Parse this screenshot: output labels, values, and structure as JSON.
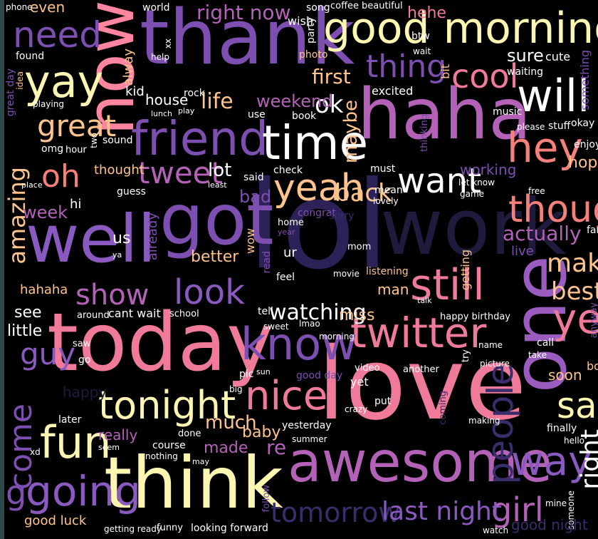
{
  "colors": {
    "background": "#000000",
    "frame": "#2c4a4a",
    "palette": [
      "#fdf6b0",
      "#ffc48c",
      "#f7807a",
      "#e06b96",
      "#b462b7",
      "#7d4fb0",
      "#3a2d6b",
      "#1e1b3d"
    ]
  },
  "words": [
    {
      "t": "thank",
      "c": "#7d4fb0"
    },
    {
      "t": "now",
      "c": "#ff85a0"
    },
    {
      "t": "good morning",
      "c": "#fdf6b0"
    },
    {
      "t": "haha",
      "c": "#b462b7"
    },
    {
      "t": "lol",
      "c": "#2d2258"
    },
    {
      "t": "work",
      "c": "#1e1b3d"
    },
    {
      "t": "well",
      "c": "#8a5ac0"
    },
    {
      "t": "got",
      "c": "#7d4fb0"
    },
    {
      "t": "today",
      "c": "#f07a9a"
    },
    {
      "t": "love",
      "c": "#f07a9a"
    },
    {
      "t": "one",
      "c": "#9b5cc0"
    },
    {
      "t": "think",
      "c": "#fdf6b0"
    },
    {
      "t": "awesome",
      "c": "#b462b7"
    },
    {
      "t": "friend",
      "c": "#7d4fb0"
    },
    {
      "t": "time",
      "c": "#ffffff"
    },
    {
      "t": "will",
      "c": "#ffffff"
    },
    {
      "t": "hey",
      "c": "#f7807a"
    },
    {
      "t": "twitter",
      "c": "#f07a9a"
    },
    {
      "t": "still",
      "c": "#f07a9a"
    },
    {
      "t": "know",
      "c": "#7d4fb0"
    },
    {
      "t": "nice",
      "c": "#f07a9a"
    },
    {
      "t": "going",
      "c": "#8a5ac0"
    },
    {
      "t": "fun",
      "c": "#fdf6b0"
    },
    {
      "t": "tonight",
      "c": "#fdf6b0"
    },
    {
      "t": "need",
      "c": "#7d4fb0"
    },
    {
      "t": "yay",
      "c": "#fdf6b0"
    },
    {
      "t": "great",
      "c": "#ffc48c"
    },
    {
      "t": "oh",
      "c": "#f7807a"
    },
    {
      "t": "tweet",
      "c": "#b462b7"
    },
    {
      "t": "yeah",
      "c": "#ffc48c"
    },
    {
      "t": "want",
      "c": "#ffffff"
    },
    {
      "t": "though",
      "c": "#f7807a"
    },
    {
      "t": "cool",
      "c": "#f07a9a"
    },
    {
      "t": "thing",
      "c": "#7d4fb0"
    },
    {
      "t": "look",
      "c": "#8a5ac0"
    },
    {
      "t": "show",
      "c": "#b462b7"
    },
    {
      "t": "guy",
      "c": "#8a5ac0"
    },
    {
      "t": "ye",
      "c": "#f07a9a"
    },
    {
      "t": "say",
      "c": "#fdf6b0"
    },
    {
      "t": "way",
      "c": "#8a5ac0"
    },
    {
      "t": "girl",
      "c": "#b462b7"
    },
    {
      "t": "make",
      "c": "#ffc48c"
    },
    {
      "t": "best",
      "c": "#ffc48c"
    },
    {
      "t": "watching",
      "c": "#ffffff"
    },
    {
      "t": "tomorrow",
      "c": "#3a2d6b"
    },
    {
      "t": "last night",
      "c": "#8a5ac0"
    },
    {
      "t": "come",
      "c": "#7d4fb0"
    },
    {
      "t": "g",
      "c": "#7d4fb0"
    },
    {
      "t": "people",
      "c": "#3a2d6b"
    },
    {
      "t": "amazing",
      "c": "#ffc48c"
    },
    {
      "t": "right",
      "c": "#ffffff"
    },
    {
      "t": "first",
      "c": "#ffc48c"
    },
    {
      "t": "ok",
      "c": "#ffffff"
    },
    {
      "t": "maybe",
      "c": "#ffc48c"
    },
    {
      "t": "weekend",
      "c": "#b462b7"
    },
    {
      "t": "life",
      "c": "#ffc48c"
    },
    {
      "t": "house",
      "c": "#ffffff"
    },
    {
      "t": "kid",
      "c": "#ffffff"
    },
    {
      "t": "back",
      "c": "#ffc48c"
    },
    {
      "t": "lot",
      "c": "#ffffff"
    },
    {
      "t": "bad",
      "c": "#7d4fb0"
    },
    {
      "t": "right now",
      "c": "#b462b7"
    },
    {
      "t": "world",
      "c": "#ffffff"
    },
    {
      "t": "song",
      "c": "#ffffff"
    },
    {
      "t": "coffee",
      "c": "#ffffff"
    },
    {
      "t": "beautiful",
      "c": "#ffffff"
    },
    {
      "t": "hehe",
      "c": "#f07a9a"
    },
    {
      "t": "wish",
      "c": "#ffffff"
    },
    {
      "t": "party",
      "c": "#ffffff"
    },
    {
      "t": "photo",
      "c": "#ffc48c"
    },
    {
      "t": "btw",
      "c": "#ffffff"
    },
    {
      "t": "wait",
      "c": "#ffffff"
    },
    {
      "t": "sure",
      "c": "#ffffff"
    },
    {
      "t": "cute",
      "c": "#ffffff"
    },
    {
      "t": "waiting",
      "c": "#ffffff"
    },
    {
      "t": "bit",
      "c": "#ffc48c"
    },
    {
      "t": "something",
      "c": "#7d4fb0"
    },
    {
      "t": "excited",
      "c": "#ffffff"
    },
    {
      "t": "music",
      "c": "#ffffff"
    },
    {
      "t": "okay",
      "c": "#ffffff"
    },
    {
      "t": "please",
      "c": "#ffffff"
    },
    {
      "t": "stuff",
      "c": "#ffffff"
    },
    {
      "t": "enjoy",
      "c": "#ffffff"
    },
    {
      "t": "hope",
      "c": "#ffc48c"
    },
    {
      "t": "working",
      "c": "#7d4fb0"
    },
    {
      "t": "let know",
      "c": "#ffffff"
    },
    {
      "t": "game",
      "c": "#ffffff"
    },
    {
      "t": "free",
      "c": "#ffffff"
    },
    {
      "t": "fan",
      "c": "#ffffff"
    },
    {
      "t": "actually",
      "c": "#b462b7"
    },
    {
      "t": "live",
      "c": "#7d4fb0"
    },
    {
      "t": "phone",
      "c": "#ffffff"
    },
    {
      "t": "even",
      "c": "#ffc48c"
    },
    {
      "t": "found",
      "c": "#ffffff"
    },
    {
      "t": "alway",
      "c": "#ffc48c"
    },
    {
      "t": "help",
      "c": "#ffffff"
    },
    {
      "t": "xx",
      "c": "#ffffff"
    },
    {
      "t": "rock",
      "c": "#ffffff"
    },
    {
      "t": "lunch",
      "c": "#ffffff"
    },
    {
      "t": "play",
      "c": "#ffffff"
    },
    {
      "t": "use",
      "c": "#ffffff"
    },
    {
      "t": "book",
      "c": "#ffffff"
    },
    {
      "t": "great day",
      "c": "#7d4fb0"
    },
    {
      "t": "idea",
      "c": "#ffc48c"
    },
    {
      "t": "playing",
      "c": "#ffffff"
    },
    {
      "t": "omg",
      "c": "#ffffff"
    },
    {
      "t": "hour",
      "c": "#ffffff"
    },
    {
      "t": "two",
      "c": "#ffffff"
    },
    {
      "t": "sound",
      "c": "#ffffff"
    },
    {
      "t": "thought",
      "c": "#ffc48c"
    },
    {
      "t": "place",
      "c": "#ffffff"
    },
    {
      "t": "guess",
      "c": "#ffffff"
    },
    {
      "t": "said",
      "c": "#ffffff"
    },
    {
      "t": "least",
      "c": "#ffffff"
    },
    {
      "t": "check",
      "c": "#ffffff"
    },
    {
      "t": "must",
      "c": "#ffffff"
    },
    {
      "t": "thinking",
      "c": "#7d4fb0"
    },
    {
      "t": "mean",
      "c": "#ffffff"
    },
    {
      "t": "lovely",
      "c": "#ffffff"
    },
    {
      "t": "week",
      "c": "#b462b7"
    },
    {
      "t": "hi",
      "c": "#ffffff"
    },
    {
      "t": "us",
      "c": "#ffffff"
    },
    {
      "t": "already",
      "c": "#7d4fb0"
    },
    {
      "t": "better",
      "c": "#ffc48c"
    },
    {
      "t": "wow",
      "c": "#ffc48c"
    },
    {
      "t": "home",
      "c": "#ffffff"
    },
    {
      "t": "year",
      "c": "#7d4fb0"
    },
    {
      "t": "congrat",
      "c": "#7d4fb0"
    },
    {
      "t": "sorry",
      "c": "#3a2d6b"
    },
    {
      "t": "ya",
      "c": "#ffffff"
    },
    {
      "t": "read",
      "c": "#7d4fb0"
    },
    {
      "t": "ur",
      "c": "#ffffff"
    },
    {
      "t": "mom",
      "c": "#ffffff"
    },
    {
      "t": "feel",
      "c": "#ffffff"
    },
    {
      "t": "movie",
      "c": "#ffffff"
    },
    {
      "t": "listening",
      "c": "#ffc48c"
    },
    {
      "t": "man",
      "c": "#ffc48c"
    },
    {
      "t": "getting",
      "c": "#ffc48c"
    },
    {
      "t": "talk",
      "c": "#ffffff"
    },
    {
      "t": "hahaha",
      "c": "#ffc48c"
    },
    {
      "t": "see",
      "c": "#ffffff"
    },
    {
      "t": "little",
      "c": "#ffffff"
    },
    {
      "t": "around",
      "c": "#ffffff"
    },
    {
      "t": "cant wait",
      "c": "#ffffff"
    },
    {
      "t": "school",
      "c": "#ffffff"
    },
    {
      "t": "tell",
      "c": "#ffffff"
    },
    {
      "t": "sweet",
      "c": "#ffffff"
    },
    {
      "t": "lmao",
      "c": "#ffffff"
    },
    {
      "t": "miss",
      "c": "#ffc48c"
    },
    {
      "t": "happy birthday",
      "c": "#ffffff"
    },
    {
      "t": "anyway",
      "c": "#7d4fb0"
    },
    {
      "t": "call",
      "c": "#ffffff"
    },
    {
      "t": "take",
      "c": "#ffffff"
    },
    {
      "t": "boy",
      "c": "#ffc48c"
    },
    {
      "t": "name",
      "c": "#ffffff"
    },
    {
      "t": "try",
      "c": "#ffffff"
    },
    {
      "t": "saw",
      "c": "#ffffff"
    },
    {
      "t": "go",
      "c": "#ffffff"
    },
    {
      "t": "pic",
      "c": "#ffffff"
    },
    {
      "t": "sun",
      "c": "#ffffff"
    },
    {
      "t": "morning",
      "c": "#ffffff"
    },
    {
      "t": "video",
      "c": "#ffffff"
    },
    {
      "t": "another",
      "c": "#ffffff"
    },
    {
      "t": "picture",
      "c": "#ffffff"
    },
    {
      "t": "soon",
      "c": "#ffc48c"
    },
    {
      "t": "yet",
      "c": "#ffffff"
    },
    {
      "t": "good day",
      "c": "#7d4fb0"
    },
    {
      "t": "big",
      "c": "#ffffff"
    },
    {
      "t": "happy",
      "c": "#1e1b3d"
    },
    {
      "t": "later",
      "c": "#ffffff"
    },
    {
      "t": "xd",
      "c": "#ffffff"
    },
    {
      "t": "really",
      "c": "#b462b7"
    },
    {
      "t": "much",
      "c": "#ffc48c"
    },
    {
      "t": "baby",
      "c": "#ffc48c"
    },
    {
      "t": "re",
      "c": "#b462b7"
    },
    {
      "t": "yesterday",
      "c": "#ffffff"
    },
    {
      "t": "summer",
      "c": "#ffffff"
    },
    {
      "t": "crazy",
      "c": "#ffffff"
    },
    {
      "t": "put",
      "c": "#ffffff"
    },
    {
      "t": "coming",
      "c": "#3a2d6b"
    },
    {
      "t": "making",
      "c": "#ffffff"
    },
    {
      "t": "finally",
      "c": "#ffffff"
    },
    {
      "t": "hello",
      "c": "#ffffff"
    },
    {
      "t": "made",
      "c": "#b462b7"
    },
    {
      "t": "done",
      "c": "#ffffff"
    },
    {
      "t": "course",
      "c": "#ffffff"
    },
    {
      "t": "nothing",
      "c": "#ffffff"
    },
    {
      "t": "may",
      "c": "#ffffff"
    },
    {
      "t": "good luck",
      "c": "#ffc48c"
    },
    {
      "t": "getting ready",
      "c": "#ffffff"
    },
    {
      "t": "funny",
      "c": "#ffffff"
    },
    {
      "t": "looking forward",
      "c": "#ffffff"
    },
    {
      "t": "follow",
      "c": "#7d4fb0"
    },
    {
      "t": "watch",
      "c": "#ffffff"
    },
    {
      "t": "mine",
      "c": "#ffffff"
    },
    {
      "t": "someone",
      "c": "#ffffff"
    },
    {
      "t": "good night",
      "c": "#3a2d6b"
    },
    {
      "t": "seem",
      "c": "#ffffff"
    }
  ]
}
